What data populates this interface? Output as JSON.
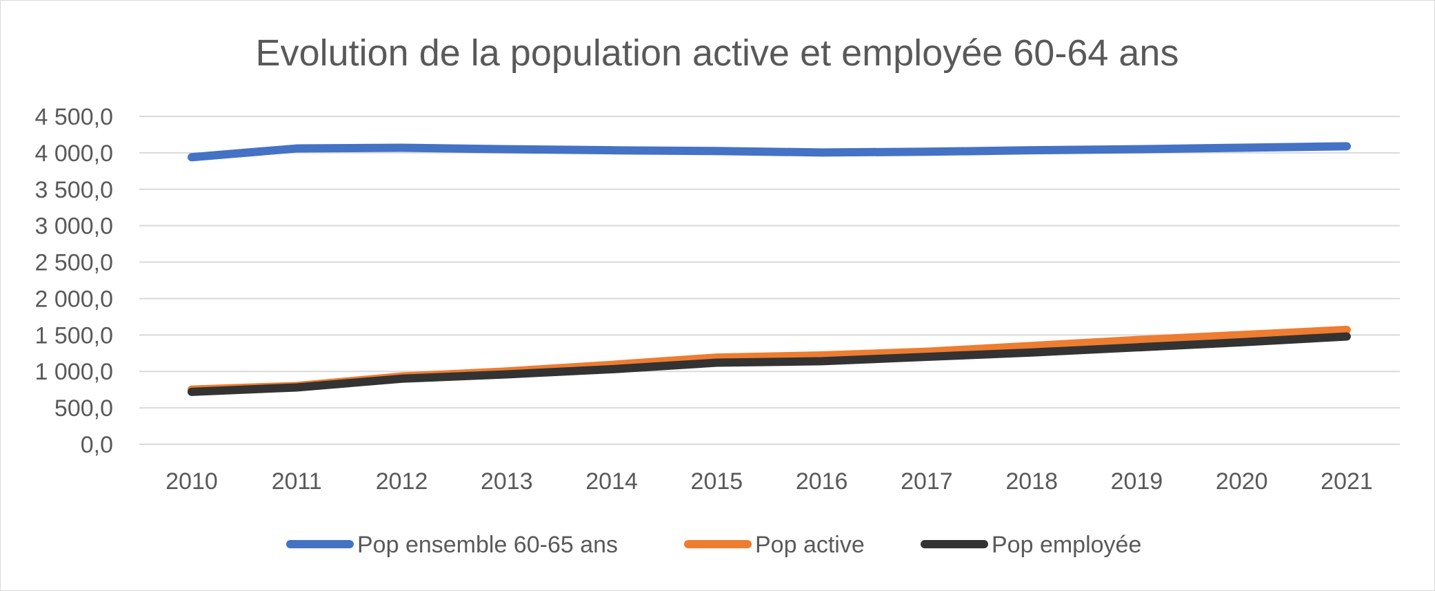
{
  "chart_data": {
    "type": "line",
    "title": "Evolution de la population active et employée 60-64 ans",
    "xlabel": "",
    "ylabel": "",
    "categories": [
      "2010",
      "2011",
      "2012",
      "2013",
      "2014",
      "2015",
      "2016",
      "2017",
      "2018",
      "2019",
      "2020",
      "2021"
    ],
    "ylim": [
      0,
      4500
    ],
    "yticks": [
      0,
      500,
      1000,
      1500,
      2000,
      2500,
      3000,
      3500,
      4000,
      4500
    ],
    "ytick_labels": [
      "0,0",
      "500,0",
      "1 000,0",
      "1 500,0",
      "2 000,0",
      "2 500,0",
      "3 000,0",
      "3 500,0",
      "4 000,0",
      "4 500,0"
    ],
    "grid": "horizontal",
    "legend_position": "bottom",
    "series": [
      {
        "name": "Pop ensemble 60-65 ans",
        "color": "#4472c4",
        "values": [
          3940,
          4060,
          4070,
          4050,
          4035,
          4025,
          4005,
          4015,
          4035,
          4050,
          4070,
          4090
        ]
      },
      {
        "name": "Pop active",
        "color": "#ed7d31",
        "values": [
          750,
          800,
          930,
          1000,
          1090,
          1190,
          1220,
          1270,
          1350,
          1430,
          1500,
          1570
        ]
      },
      {
        "name": "Pop employée",
        "color": "#333333",
        "values": [
          720,
          780,
          900,
          960,
          1030,
          1120,
          1140,
          1200,
          1260,
          1330,
          1400,
          1480
        ]
      }
    ]
  }
}
